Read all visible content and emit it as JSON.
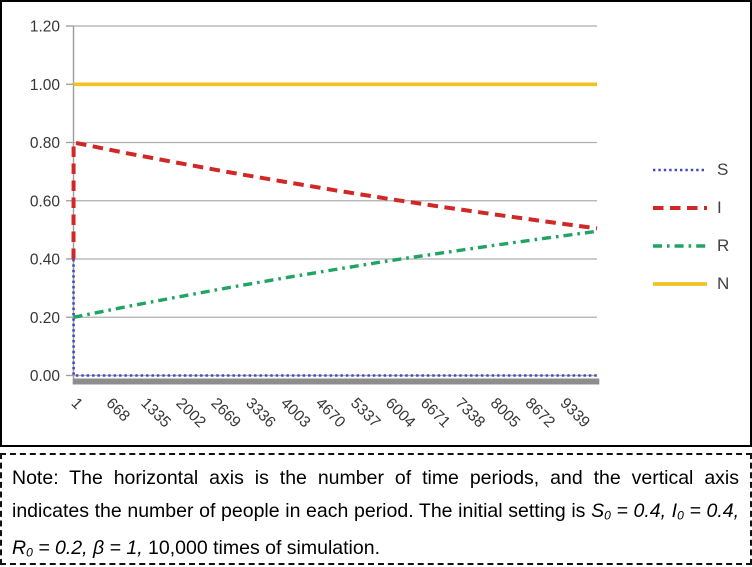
{
  "chart_data": {
    "type": "line",
    "grid": true,
    "legend_position": "right",
    "xlim": [
      1,
      10000
    ],
    "ylim": [
      0,
      1.2
    ],
    "y_ticks": {
      "values": [
        0,
        0.2,
        0.4,
        0.6,
        0.8,
        1.0,
        1.2
      ],
      "labels": [
        "0.00",
        "0.20",
        "0.40",
        "0.60",
        "0.80",
        "1.00",
        "1.20"
      ]
    },
    "x_ticks": {
      "values": [
        1,
        668,
        1335,
        2002,
        2669,
        3336,
        4003,
        4670,
        5337,
        6004,
        6671,
        7338,
        8005,
        8672,
        9339
      ],
      "labels": [
        "1",
        "668",
        "1335",
        "2002",
        "2669",
        "3336",
        "4003",
        "4670",
        "5337",
        "6004",
        "6671",
        "7338",
        "8005",
        "8672",
        "9339"
      ]
    },
    "series": [
      {
        "name": "S",
        "style": "dotted",
        "color": "#4547c5",
        "points": [
          [
            1,
            0.4
          ],
          [
            2,
            0.0
          ],
          [
            10000,
            0.0
          ]
        ]
      },
      {
        "name": "I",
        "style": "dashed",
        "color": "#d02727",
        "points": [
          [
            1,
            0.4
          ],
          [
            2,
            0.8
          ],
          [
            1000,
            0.764
          ],
          [
            2000,
            0.73
          ],
          [
            3000,
            0.697
          ],
          [
            4000,
            0.666
          ],
          [
            5000,
            0.636
          ],
          [
            6000,
            0.607
          ],
          [
            7000,
            0.58
          ],
          [
            8000,
            0.554
          ],
          [
            9000,
            0.529
          ],
          [
            10000,
            0.505
          ]
        ]
      },
      {
        "name": "R",
        "style": "dashdot",
        "color": "#1fa463",
        "points": [
          [
            1,
            0.2
          ],
          [
            2,
            0.2
          ],
          [
            1000,
            0.236
          ],
          [
            2000,
            0.27
          ],
          [
            3000,
            0.303
          ],
          [
            4000,
            0.334
          ],
          [
            5000,
            0.364
          ],
          [
            6000,
            0.393
          ],
          [
            7000,
            0.42
          ],
          [
            8000,
            0.446
          ],
          [
            9000,
            0.471
          ],
          [
            10000,
            0.495
          ]
        ]
      },
      {
        "name": "N",
        "style": "solid",
        "color": "#f0c323",
        "points": [
          [
            1,
            1.0
          ],
          [
            10000,
            1.0
          ]
        ]
      }
    ],
    "colors": {
      "gridline": "#aeaeae",
      "axis": "#9c9c9c",
      "axis_bar": "#8d8d8d",
      "tick_text": "#363636",
      "legend_text": "#404040"
    }
  },
  "note": {
    "segments": [
      {
        "text": "Note: The horizontal axis is the number of time periods, and the vertical axis indicates the number of people in each period. The initial setting is ",
        "style": "regular"
      },
      {
        "text": "S",
        "style": "italic"
      },
      {
        "text": "0",
        "style": "italic-sub"
      },
      {
        "text": " = 0.4, ",
        "style": "italic"
      },
      {
        "text": "I",
        "style": "italic"
      },
      {
        "text": "0",
        "style": "italic-sub"
      },
      {
        "text": " = 0.4, ",
        "style": "italic"
      },
      {
        "text": "R",
        "style": "italic"
      },
      {
        "text": "0",
        "style": "italic-sub"
      },
      {
        "text": " = 0.2, ",
        "style": "italic"
      },
      {
        "text": "β = 1,",
        "style": "italic"
      },
      {
        "text": " 10,000 times of simulation.",
        "style": "regular"
      }
    ]
  }
}
